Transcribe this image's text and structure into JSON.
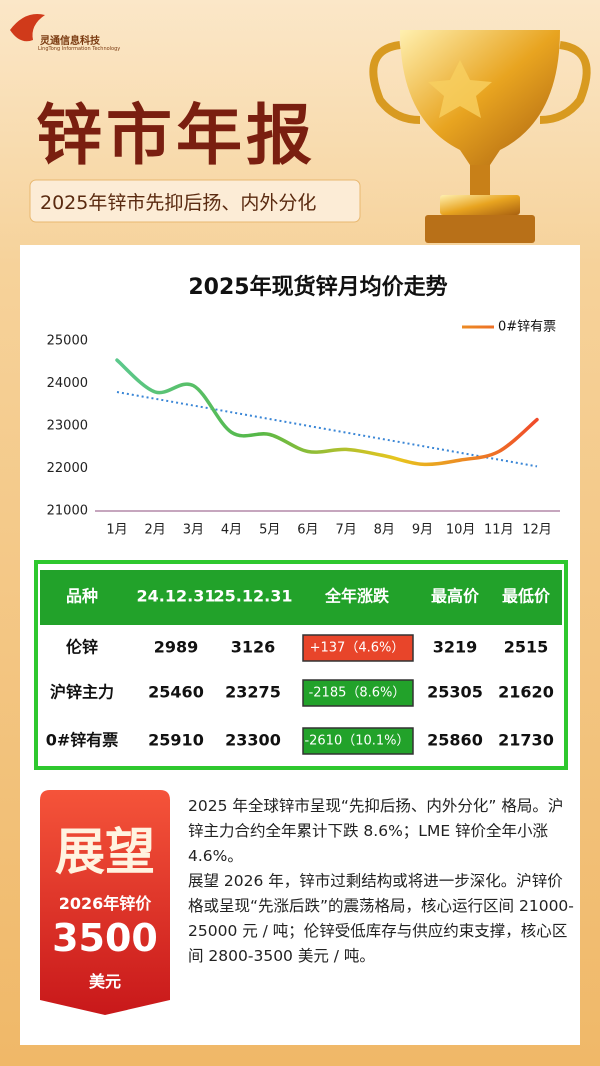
{
  "header": {
    "logo": "灵通信息科技",
    "logo_en": "LingTong Information Technology",
    "title": "锌市年报",
    "subtitle": "2025年锌市先抑后扬、内外分化"
  },
  "chart_data": {
    "type": "line",
    "title": "2025年现货锌月均价走势",
    "categories": [
      "1月",
      "2月",
      "3月",
      "4月",
      "5月",
      "6月",
      "7月",
      "8月",
      "9月",
      "10月",
      "11月",
      "12月"
    ],
    "series": [
      {
        "name": "0#锌有票",
        "colors": [
          "#5cc88c",
          "#55b848",
          "#e8c51e",
          "#f04a2a"
        ],
        "values": [
          24550,
          23800,
          23950,
          22850,
          22800,
          22400,
          22450,
          22300,
          22100,
          22200,
          22400,
          23150
        ]
      }
    ],
    "trendline": {
      "start": 23800,
      "end": 22050,
      "color": "#3a86d6"
    },
    "ylim": [
      21000,
      25000
    ],
    "yticks": [
      21000,
      22000,
      23000,
      24000,
      25000
    ],
    "grid": false,
    "legend": "top-right"
  },
  "table": {
    "header": [
      "品种",
      "24.12.31",
      "25.12.31",
      "全年涨跌",
      "最高价",
      "最低价"
    ],
    "rows": [
      [
        "伦锌",
        "2989",
        "3126",
        "+137（4.6%）",
        "3219",
        "2515"
      ],
      [
        "沪锌主力",
        "25460",
        "23275",
        "-2185（8.6%）",
        "25305",
        "21620"
      ],
      [
        "0#锌有票",
        "25910",
        "23300",
        "-2610（10.1%）",
        "25860",
        "21730"
      ]
    ],
    "change_colors": [
      "#e8452a",
      "#22a22a",
      "#22a22a"
    ]
  },
  "outlook": {
    "badge": {
      "title": "展望",
      "label": "2026年锌价",
      "price": "3500",
      "unit": "美元"
    },
    "paragraphs": [
      "2025 年全球锌市呈现“先抑后扬、内外分化” 格局。沪锌主力合约全年累计下跌 8.6%；LME 锌价全年小涨4.6%。",
      "展望 2026 年，锌市过剩结构或将进一步深化。沪锌价格或呈现“先涨后跌”的震荡格局，核心运行区间 21000-25000 元 / 吨；伦锌受低库存与供应约束支撑，核心区间 2800-3500 美元 / 吨。"
    ]
  }
}
